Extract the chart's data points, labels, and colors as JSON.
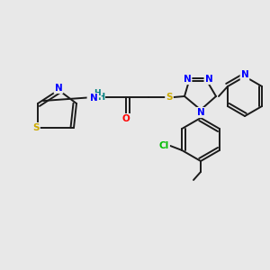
{
  "background_color": "#e8e8e8",
  "bond_color": "#1a1a1a",
  "atom_colors": {
    "N": "#0000ff",
    "S": "#ccaa00",
    "O": "#ff0000",
    "H": "#008080",
    "Cl": "#00bb00",
    "C": "#1a1a1a"
  },
  "lw": 1.4
}
